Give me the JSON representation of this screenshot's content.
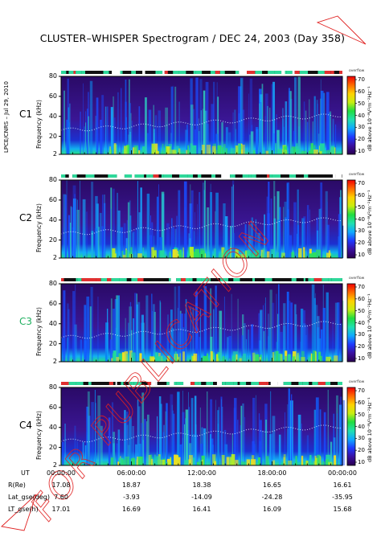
{
  "title": "CLUSTER–WHISPER Spectrogram / DEC 24, 2003 (Day 358)",
  "side_label": "LPCE/CNRS – Jul 29, 2010",
  "colorbar": {
    "top_text": "overflow",
    "label": "dB above 10⁻⁸V²m⁻²Hz⁻¹",
    "ticks": [
      "70",
      "60",
      "50",
      "40",
      "30",
      "20",
      "10"
    ],
    "ylim": [
      10,
      70
    ],
    "colors": [
      "#2a0050",
      "#3a10a0",
      "#1f39ff",
      "#0fa9ff",
      "#20e0b0",
      "#20dd40",
      "#c8ee10",
      "#ffd200",
      "#ff6a00",
      "#f00000"
    ]
  },
  "chart_data": [
    {
      "type": "heatmap",
      "panel": "C1",
      "label_color": "#000000",
      "ylabel": "Frequency (kHz)",
      "y_ticks": [
        "80",
        "60",
        "40",
        "20",
        "2"
      ],
      "ylim": [
        2,
        80
      ],
      "x_ticks": [
        "00:00:00",
        "06:00:00",
        "12:00:00",
        "18:00:00",
        "00:00:00"
      ]
    },
    {
      "type": "heatmap",
      "panel": "C2",
      "label_color": "#000000",
      "ylabel": "Frequency (kHz)",
      "y_ticks": [
        "80",
        "60",
        "40",
        "20",
        "2"
      ],
      "ylim": [
        2,
        80
      ],
      "x_ticks": [
        "00:00:00",
        "06:00:00",
        "12:00:00",
        "18:00:00",
        "00:00:00"
      ]
    },
    {
      "type": "heatmap",
      "panel": "C3",
      "label_color": "#20b060",
      "ylabel": "Frequency (kHz)",
      "y_ticks": [
        "80",
        "60",
        "40",
        "20",
        "2"
      ],
      "ylim": [
        2,
        80
      ],
      "x_ticks": [
        "00:00:00",
        "06:00:00",
        "12:00:00",
        "18:00:00",
        "00:00:00"
      ]
    },
    {
      "type": "heatmap",
      "panel": "C4",
      "label_color": "#000000",
      "ylabel": "Frequency (kHz)",
      "y_ticks": [
        "80",
        "60",
        "40",
        "20",
        "2"
      ],
      "ylim": [
        2,
        80
      ],
      "x_ticks": [
        "00:00:00",
        "06:00:00",
        "12:00:00",
        "18:00:00",
        "00:00:00"
      ]
    }
  ],
  "ephemeris": {
    "rows": [
      {
        "label": "UT",
        "values": [
          "00:00:00",
          "06:00:00",
          "12:00:00",
          "18:00:00",
          "00:00:00"
        ]
      },
      {
        "label": "R(Re)",
        "values": [
          "17.08",
          "18.87",
          "18.38",
          "16.65",
          "16.61"
        ]
      },
      {
        "label": "Lat_gse(deg)",
        "values": [
          "7.60",
          "-3.93",
          "-14.09",
          "-24.28",
          "-35.95"
        ]
      },
      {
        "label": "LT_gse(h)",
        "values": [
          "17.01",
          "16.69",
          "16.41",
          "16.09",
          "15.68"
        ]
      }
    ]
  },
  "watermark": "FOR PUBLICATION",
  "watermark_color": "#e02020"
}
